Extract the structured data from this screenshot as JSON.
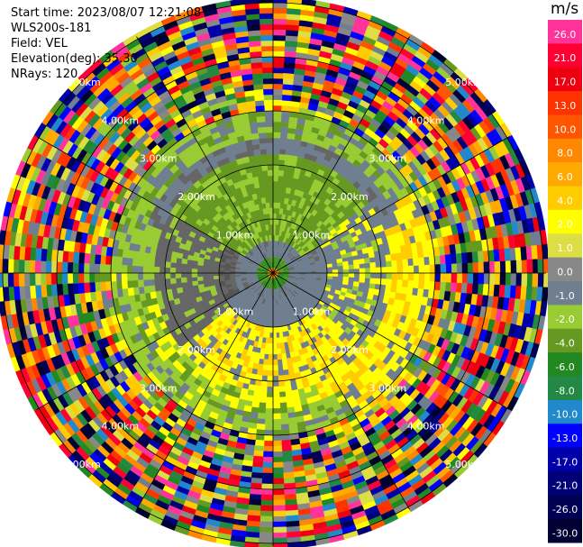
{
  "info": {
    "start_time": "Start time: 2023/08/07 12:21:08",
    "device": "WLS200s-181",
    "field": "Field: VEL",
    "elevation": "Elevation(deg): 35.30",
    "nrays": "NRays: 120"
  },
  "colorbar": {
    "unit": "m/s",
    "ticks": [
      "26.0",
      "21.0",
      "17.0",
      "13.0",
      "10.0",
      "8.0",
      "6.0",
      "4.0",
      "2.0",
      "1.0",
      "0.0",
      "-1.0",
      "-2.0",
      "-4.0",
      "-6.0",
      "-8.0",
      "-10.0",
      "-13.0",
      "-17.0",
      "-21.0",
      "-26.0",
      "-30.0"
    ],
    "colors": [
      "#ff3399",
      "#ff0033",
      "#ee0011",
      "#ff3300",
      "#ff5500",
      "#ff8800",
      "#ffaa00",
      "#ffcc00",
      "#ffff00",
      "#dddd44",
      "#888888",
      "#707f8f",
      "#99cc33",
      "#669922",
      "#228822",
      "#228844",
      "#2288cc",
      "#0000ff",
      "#0000aa",
      "#000077",
      "#000055",
      "#000033"
    ]
  },
  "chart_data": {
    "type": "ppi",
    "title": "",
    "field": "VEL",
    "units": "m/s",
    "nrays": 120,
    "elevation_deg": 35.3,
    "range_rings_km": [
      1,
      2,
      3,
      4,
      5
    ],
    "ring_labels": [
      "1.00km",
      "2.00km",
      "3.00km",
      "4.00km",
      "5.00km"
    ],
    "spokes_deg": [
      0,
      30,
      60,
      90,
      120,
      150,
      180,
      210,
      240,
      270,
      300,
      330
    ],
    "color_range": [
      -30.0,
      26.0
    ],
    "zones": [
      {
        "range_km": [
          0.0,
          0.35
        ],
        "description": "center green/orange",
        "value_ms": -4.0
      },
      {
        "range_km": [
          0.35,
          1.0
        ],
        "color_index": "0.0 gray",
        "value_ms": 0.0
      },
      {
        "range_km": [
          1.0,
          2.2
        ],
        "sectors": "north green, south yellow, east/west gray",
        "value_ms": [
          -2.0,
          2.0,
          0.0
        ]
      },
      {
        "range_km": [
          2.2,
          3.0
        ],
        "description": "gray band north, green/yellow mix south",
        "value_ms": 0.0
      },
      {
        "range_km": [
          3.0,
          5.2
        ],
        "description": "noise, all colors",
        "value_ms": null
      }
    ]
  }
}
